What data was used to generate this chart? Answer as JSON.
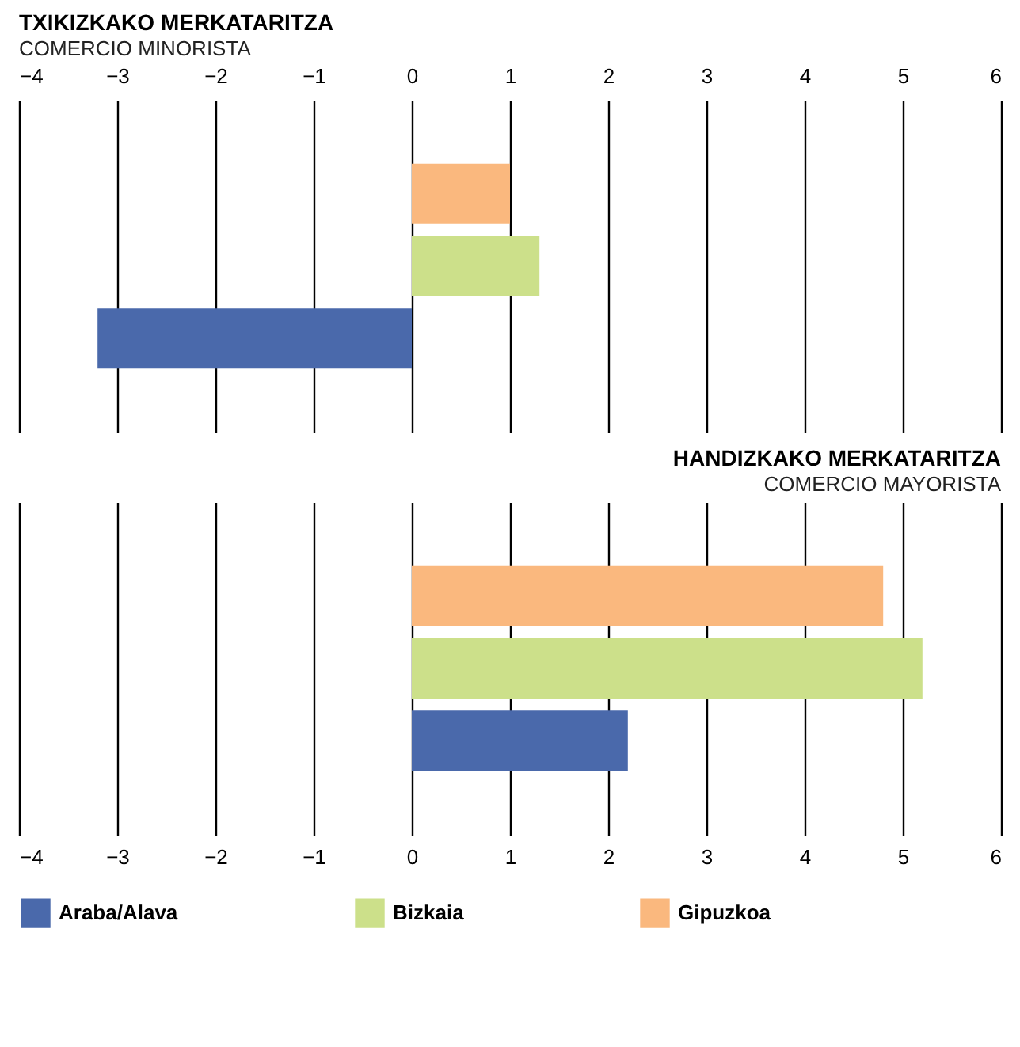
{
  "chart_data": [
    {
      "type": "bar",
      "orientation": "horizontal",
      "title": "TXIKIZKAKO MERKATARITZA",
      "subtitle": "COMERCIO MINORISTA",
      "categories": [
        null
      ],
      "xlim": [
        -4,
        6
      ],
      "xticks": [
        -4,
        -3,
        -2,
        -1,
        0,
        1,
        2,
        3,
        4,
        5,
        6
      ],
      "grid": "x",
      "legend": "bottom",
      "series": [
        {
          "name": "Araba/Alava",
          "color": "#4a69ab",
          "values": [
            -3.2
          ]
        },
        {
          "name": "Bizkaia",
          "color": "#cce08a",
          "values": [
            1.3
          ]
        },
        {
          "name": "Gipuzkoa",
          "color": "#fab87e",
          "values": [
            1.0
          ]
        }
      ]
    },
    {
      "type": "bar",
      "orientation": "horizontal",
      "title": "HANDIZKAKO MERKATARITZA",
      "subtitle": "COMERCIO MAYORISTA",
      "categories": [
        null
      ],
      "xlim": [
        -4,
        6
      ],
      "xticks": [
        -4,
        -3,
        -2,
        -1,
        0,
        1,
        2,
        3,
        4,
        5,
        6
      ],
      "grid": "x",
      "legend": "bottom",
      "series": [
        {
          "name": "Araba/Alava",
          "color": "#4a69ab",
          "values": [
            2.2
          ]
        },
        {
          "name": "Bizkaia",
          "color": "#cce08a",
          "values": [
            5.2
          ]
        },
        {
          "name": "Gipuzkoa",
          "color": "#fab87e",
          "values": [
            4.8
          ]
        }
      ]
    }
  ]
}
